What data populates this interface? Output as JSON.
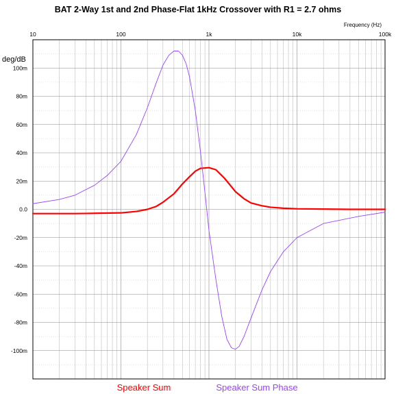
{
  "chart_data": {
    "type": "line",
    "title": "BAT 2-Way 1st and 2nd Phase-Flat 1kHz Crossover with R1 = 2.7 ohms",
    "xlabel": "Frequency   (Hz)",
    "ylabel": "deg/dB",
    "x_scale": "log",
    "xlim": [
      10,
      100000
    ],
    "ylim": [
      -0.12,
      0.12
    ],
    "grid": true,
    "legend_placement": "bottom",
    "x_ticks": [
      {
        "value": 10,
        "label": "10"
      },
      {
        "value": 100,
        "label": "100"
      },
      {
        "value": 1000,
        "label": "1k"
      },
      {
        "value": 10000,
        "label": "10k"
      },
      {
        "value": 100000,
        "label": "100k"
      }
    ],
    "y_ticks": [
      {
        "value": 0.1,
        "label": "100m"
      },
      {
        "value": 0.08,
        "label": "80m"
      },
      {
        "value": 0.06,
        "label": "60m"
      },
      {
        "value": 0.04,
        "label": "40m"
      },
      {
        "value": 0.02,
        "label": "20m"
      },
      {
        "value": 0.0,
        "label": "0.0"
      },
      {
        "value": -0.02,
        "label": "-20m"
      },
      {
        "value": -0.04,
        "label": "-40m"
      },
      {
        "value": -0.06,
        "label": "-60m"
      },
      {
        "value": -0.08,
        "label": "-80m"
      },
      {
        "value": -0.1,
        "label": "-100m"
      }
    ],
    "series": [
      {
        "name": "Speaker Sum",
        "color": "#ff0000",
        "points": [
          [
            10,
            -0.003
          ],
          [
            30,
            -0.003
          ],
          [
            50,
            -0.0028
          ],
          [
            100,
            -0.0025
          ],
          [
            150,
            -0.0015
          ],
          [
            200,
            0.0
          ],
          [
            250,
            0.002
          ],
          [
            300,
            0.005
          ],
          [
            400,
            0.011
          ],
          [
            500,
            0.018
          ],
          [
            600,
            0.023
          ],
          [
            700,
            0.027
          ],
          [
            800,
            0.029
          ],
          [
            1000,
            0.0295
          ],
          [
            1200,
            0.028
          ],
          [
            1500,
            0.022
          ],
          [
            2000,
            0.0125
          ],
          [
            2500,
            0.0075
          ],
          [
            3000,
            0.0045
          ],
          [
            4000,
            0.0025
          ],
          [
            5000,
            0.0015
          ],
          [
            7000,
            0.0008
          ],
          [
            10000,
            0.0004
          ],
          [
            20000,
            0.0002
          ],
          [
            40000,
            0.0
          ],
          [
            100000,
            0.0
          ]
        ]
      },
      {
        "name": "Speaker Sum Phase",
        "color": "#9944ff",
        "points": [
          [
            10,
            0.004
          ],
          [
            20,
            0.007
          ],
          [
            30,
            0.01
          ],
          [
            50,
            0.017
          ],
          [
            70,
            0.024
          ],
          [
            100,
            0.034
          ],
          [
            150,
            0.053
          ],
          [
            200,
            0.072
          ],
          [
            250,
            0.089
          ],
          [
            300,
            0.102
          ],
          [
            350,
            0.109
          ],
          [
            400,
            0.112
          ],
          [
            450,
            0.112
          ],
          [
            500,
            0.109
          ],
          [
            550,
            0.103
          ],
          [
            600,
            0.094
          ],
          [
            700,
            0.07
          ],
          [
            800,
            0.041
          ],
          [
            900,
            0.012
          ],
          [
            1000,
            -0.015
          ],
          [
            1200,
            -0.05
          ],
          [
            1400,
            -0.076
          ],
          [
            1600,
            -0.092
          ],
          [
            1800,
            -0.098
          ],
          [
            2000,
            -0.099
          ],
          [
            2200,
            -0.097
          ],
          [
            2500,
            -0.09
          ],
          [
            3000,
            -0.077
          ],
          [
            4000,
            -0.057
          ],
          [
            5000,
            -0.044
          ],
          [
            7000,
            -0.03
          ],
          [
            10000,
            -0.02
          ],
          [
            20000,
            -0.01
          ],
          [
            50000,
            -0.005
          ],
          [
            100000,
            -0.002
          ]
        ]
      }
    ]
  }
}
